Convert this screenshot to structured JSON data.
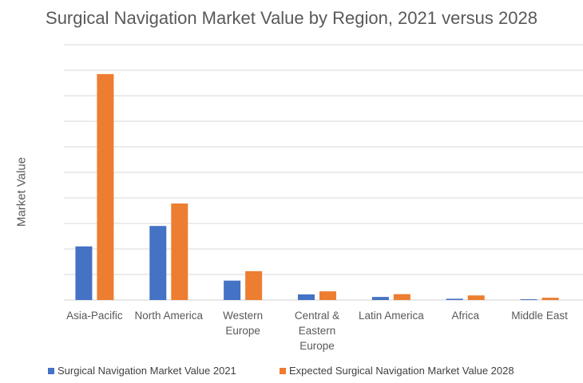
{
  "chart_data": {
    "type": "bar",
    "title": "Surgical Navigation Market Value by Region, 2021 versus 2028",
    "xlabel": "",
    "ylabel": "Market Value",
    "ylim": [
      0,
      10
    ],
    "grid": true,
    "legend_position": "bottom",
    "categories": [
      "Asia-Pacific",
      "North America",
      "Western Europe",
      "Central & Eastern Europe",
      "Latin America",
      "Africa",
      "Middle East"
    ],
    "category_lines": [
      [
        "Asia-Pacific"
      ],
      [
        "North America"
      ],
      [
        "Western",
        "Europe"
      ],
      [
        "Central &",
        "Eastern",
        "Europe"
      ],
      [
        "Latin America"
      ],
      [
        "Africa"
      ],
      [
        "Middle East"
      ]
    ],
    "series": [
      {
        "name": "Surgical Navigation Market Value 2021",
        "color": "#4472C4",
        "values": [
          2.1,
          2.9,
          0.76,
          0.22,
          0.12,
          0.05,
          0.03
        ]
      },
      {
        "name": "Expected Surgical Navigation Market Value 2028",
        "color": "#ED7D31",
        "values": [
          8.85,
          3.78,
          1.13,
          0.34,
          0.23,
          0.18,
          0.09
        ]
      }
    ]
  }
}
